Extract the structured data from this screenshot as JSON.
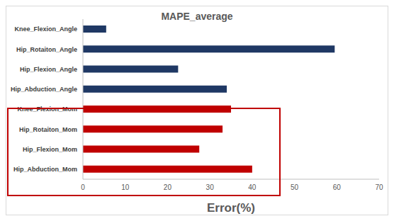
{
  "chart_data": {
    "type": "bar",
    "title": "MAPE_average",
    "x_label": "Error(%)",
    "orientation": "horizontal",
    "grid": false,
    "categories": [
      "Knee_Flexion_Angle",
      "Hip_Rotaiton_Angle",
      "Hip_Flexion_Angle",
      "Hip_Abduction_Angle",
      "Knee_Flexion_Mom",
      "Hip_Rotaiton_Mom",
      "Hip_Flexion_Mom",
      "Hip_Abduction_Mom"
    ],
    "values": [
      5.5,
      59.5,
      22.5,
      34,
      35,
      33,
      27.5,
      40
    ],
    "colors": [
      "#1f3864",
      "#1f3864",
      "#1f3864",
      "#1f3864",
      "#c00000",
      "#c00000",
      "#c00000",
      "#c00000"
    ],
    "xlim": [
      0,
      70
    ],
    "xticks": [
      0,
      10,
      20,
      30,
      40,
      50,
      60,
      70
    ]
  }
}
